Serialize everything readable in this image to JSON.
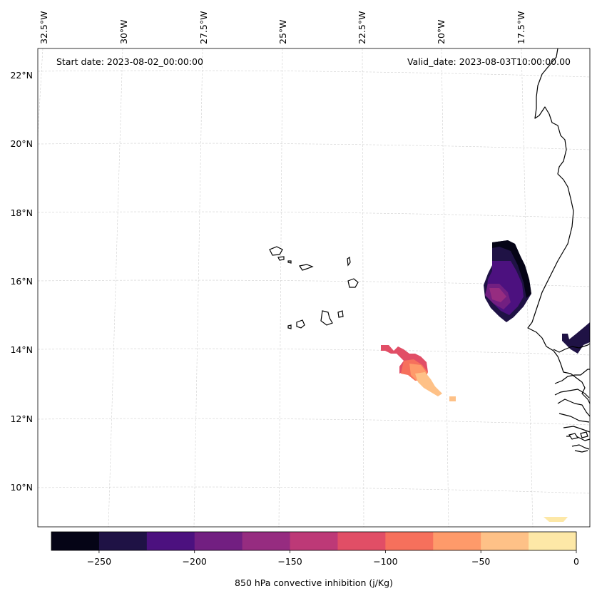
{
  "map": {
    "start_date": "Start date: 2023-08-02_00:00:00",
    "valid_date": "Valid_date: 2023-08-03T10:00:00.00",
    "lon_labels": [
      "32.5°W",
      "30°W",
      "27.5°W",
      "25°W",
      "22.5°W",
      "20°W",
      "17.5°W"
    ],
    "lat_labels": [
      "22°N",
      "20°N",
      "18°N",
      "16°N",
      "14°N",
      "12°N",
      "10°N"
    ]
  },
  "colorbar": {
    "label": "850 hPa convective inhibition (j/Kg)",
    "ticks": [
      "−250",
      "−200",
      "−150",
      "−100",
      "−50",
      "0"
    ],
    "range": [
      -275,
      0
    ],
    "colors": [
      "#050416",
      "#1f1245",
      "#4c117f",
      "#721f81",
      "#962c80",
      "#bd3977",
      "#e14e66",
      "#f6705c",
      "#fe9a6a",
      "#fec187",
      "#fde8a7"
    ]
  },
  "colors": {
    "coast": "#000000",
    "grid": "#cfcfcf"
  }
}
